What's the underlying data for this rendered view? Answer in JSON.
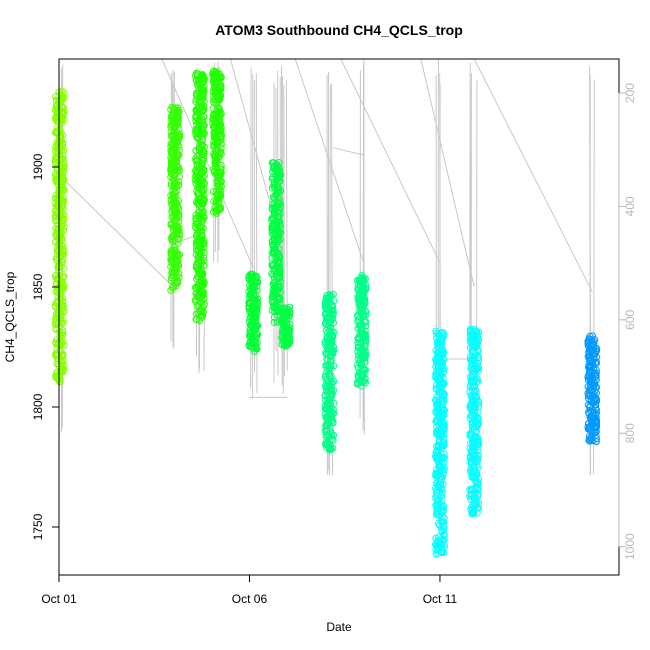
{
  "chart_data": {
    "type": "scatter",
    "title": "ATOM3 Southbound CH4_QCLS_trop",
    "xlabel": "Date",
    "ylabel": "CH4_QCLS_trop",
    "x_range_days": [
      0.0,
      14.7
    ],
    "x_ticks": [
      {
        "day": 0,
        "label": "Oct 01"
      },
      {
        "day": 5,
        "label": "Oct 06"
      },
      {
        "day": 10,
        "label": "Oct 11"
      }
    ],
    "ylim": [
      1730,
      1945
    ],
    "y_ticks": [
      1750,
      1800,
      1850,
      1900
    ],
    "y2_ticks": [
      200,
      400,
      600,
      800,
      1000
    ],
    "y2_range": [
      1050,
      140
    ],
    "y2_reversed": true,
    "grid": false,
    "legend": "none",
    "colors": {
      "pressure_line": "#c8c8c8",
      "axis": "#000000",
      "right_axis": "#b8b8b8"
    },
    "clusters": [
      {
        "day": 0.02,
        "y_min": 1810,
        "y_max": 1932,
        "mode": "vertical",
        "color": "#88ff00"
      },
      {
        "day": 3.05,
        "y_min": 1848,
        "y_max": 1925,
        "mode": "vertical",
        "color": "#33ff00"
      },
      {
        "day": 3.7,
        "y_min": 1836,
        "y_max": 1940,
        "mode": "vertical",
        "color": "#22ff00"
      },
      {
        "day": 4.15,
        "y_min": 1880,
        "y_max": 1940,
        "mode": "vertical",
        "color": "#22ff00"
      },
      {
        "day": 5.1,
        "y_min": 1823,
        "y_max": 1856,
        "mode": "vertical",
        "color": "#00ff33"
      },
      {
        "day": 5.7,
        "y_min": 1835,
        "y_max": 1902,
        "mode": "vertical",
        "color": "#00ff44"
      },
      {
        "day": 5.95,
        "y_min": 1825,
        "y_max": 1842,
        "mode": "vertical",
        "color": "#00ff44"
      },
      {
        "day": 7.1,
        "y_min": 1782,
        "y_max": 1847,
        "mode": "vertical",
        "color": "#00ff88"
      },
      {
        "day": 7.95,
        "y_min": 1808,
        "y_max": 1855,
        "mode": "vertical",
        "color": "#00ff88"
      },
      {
        "day": 10.0,
        "y_min": 1738,
        "y_max": 1832,
        "mode": "vertical",
        "color": "#00ffff"
      },
      {
        "day": 10.9,
        "y_min": 1755,
        "y_max": 1833,
        "mode": "vertical",
        "color": "#00ffff"
      },
      {
        "day": 14.0,
        "y_min": 1785,
        "y_max": 1830,
        "mode": "vertical",
        "color": "#0099ff"
      }
    ]
  }
}
